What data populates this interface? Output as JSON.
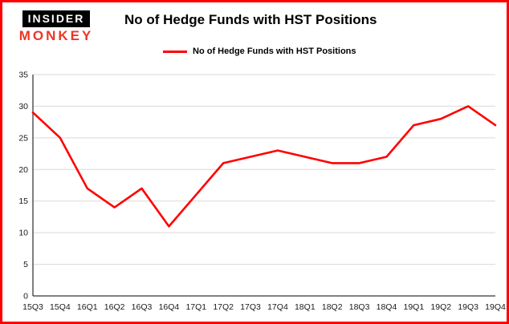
{
  "logo": {
    "top": "INSIDER",
    "bottom": "MONKEY"
  },
  "header": {
    "title": "No of Hedge Funds with HST Positions"
  },
  "legend": {
    "label": "No of Hedge Funds with HST Positions",
    "color": "#ff0000"
  },
  "colors": {
    "frame_border": "#fe0000",
    "line": "#ff0000",
    "gridline": "#d9d9d9",
    "axis": "#000000",
    "logo_accent": "#ee3524"
  },
  "chart_data": {
    "type": "line",
    "title": "No of Hedge Funds with HST Positions",
    "categories": [
      "15Q3",
      "15Q4",
      "16Q1",
      "16Q2",
      "16Q3",
      "16Q4",
      "17Q1",
      "17Q2",
      "17Q3",
      "17Q4",
      "18Q1",
      "18Q2",
      "18Q3",
      "18Q4",
      "19Q1",
      "19Q2",
      "19Q3",
      "19Q4"
    ],
    "series": [
      {
        "name": "No of Hedge Funds with HST Positions",
        "color": "#ff0000",
        "values": [
          29,
          25,
          17,
          14,
          17,
          11,
          16,
          21,
          22,
          23,
          22,
          21,
          21,
          22,
          27,
          28,
          30,
          27
        ]
      }
    ],
    "xlabel": "",
    "ylabel": "",
    "ylim": [
      0,
      35
    ],
    "yticks": [
      0,
      5,
      10,
      15,
      20,
      25,
      30,
      35
    ],
    "grid": true,
    "legend_position": "top-left"
  }
}
